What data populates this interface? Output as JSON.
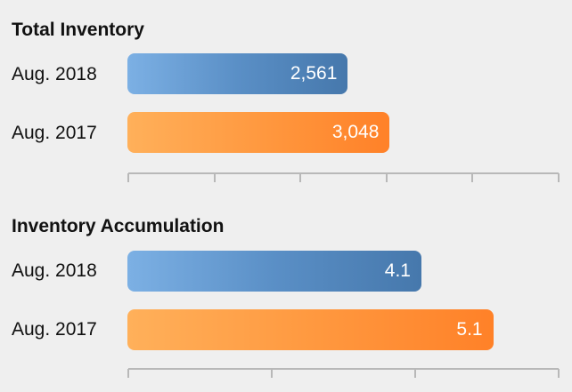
{
  "chart_data": [
    {
      "type": "bar",
      "orientation": "horizontal",
      "title": "Total Inventory",
      "categories": [
        "Aug. 2018",
        "Aug. 2017"
      ],
      "values": [
        2561,
        3048
      ],
      "value_labels": [
        "2,561",
        "3,048"
      ],
      "bar_colors": [
        "#5a8fc6",
        "#ff9940"
      ],
      "xlim": [
        0,
        5000
      ],
      "x_ticks": 5,
      "grid": false,
      "legend": "none"
    },
    {
      "type": "bar",
      "orientation": "horizontal",
      "title": "Inventory Accumulation",
      "categories": [
        "Aug. 2018",
        "Aug. 2017"
      ],
      "values": [
        4.1,
        5.1
      ],
      "value_labels": [
        "4.1",
        "5.1"
      ],
      "bar_colors": [
        "#5a8fc6",
        "#ff9940"
      ],
      "xlim": [
        0,
        6
      ],
      "x_ticks": 3,
      "grid": false,
      "legend": "none"
    }
  ]
}
